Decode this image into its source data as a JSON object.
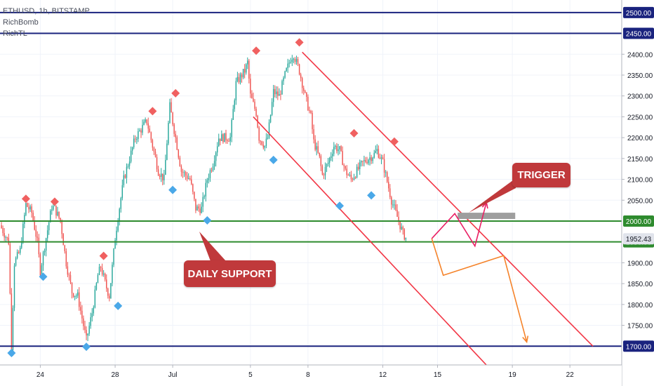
{
  "header": {
    "symbol_line": "ETHUSD, 1h, BITSTAMP",
    "indicator_1": "RichBomb",
    "indicator_2": "RichTL"
  },
  "annotations": {
    "daily_support": "DAILY SUPPORT",
    "trigger": "TRIGGER"
  },
  "colors": {
    "up": "#26a69a",
    "down": "#ef5350",
    "level_blue": "#1a237e",
    "support_green": "#2e8b2e",
    "channel_red": "#f23645",
    "callout_red": "#c0393b",
    "diamond_red": "#f06060",
    "diamond_blue": "#4aa8e8",
    "projection_orange": "#f5832a",
    "projection_pink": "#e91e63",
    "trigger_box": "#9e9e9e"
  },
  "chart_data": {
    "type": "candlestick",
    "symbol": "ETHUSD",
    "timeframe": "1h",
    "exchange": "BITSTAMP",
    "x_tick_labels": [
      "24",
      "28",
      "Jul",
      "5",
      "8",
      "12",
      "15",
      "19",
      "22"
    ],
    "x_tick_index": [
      14,
      40,
      60,
      87,
      107,
      133,
      152,
      178,
      198
    ],
    "x_range": [
      0,
      216
    ],
    "y_ticks": [
      1700,
      1750,
      1800,
      1850,
      1900,
      1950,
      2000,
      2050,
      2100,
      2150,
      2200,
      2250,
      2300,
      2350,
      2400
    ],
    "ylim": [
      1655,
      2530
    ],
    "horizontal_levels": [
      {
        "price": 2500,
        "label": "2500.00",
        "color": "#1a237e",
        "style": "blue"
      },
      {
        "price": 2450,
        "label": "2450.00",
        "color": "#1a237e",
        "style": "blue"
      },
      {
        "price": 2000,
        "label": "2000.00",
        "color": "#2e8b2e",
        "style": "green"
      },
      {
        "price": 1950,
        "label": "1950.00",
        "color": "#2e8b2e",
        "style": "green"
      },
      {
        "price": 1700,
        "label": "1700.00",
        "color": "#1a237e",
        "style": "blue"
      }
    ],
    "current_price": {
      "price": 1952.43,
      "label": "1952.43"
    },
    "price_path": [
      [
        0,
        1990
      ],
      [
        3,
        1950
      ],
      [
        4,
        1700
      ],
      [
        5,
        1900
      ],
      [
        7,
        1930
      ],
      [
        9,
        2040
      ],
      [
        11,
        2020
      ],
      [
        13,
        1950
      ],
      [
        14,
        1880
      ],
      [
        16,
        1960
      ],
      [
        18,
        2035
      ],
      [
        19,
        2030
      ],
      [
        21,
        2000
      ],
      [
        23,
        1900
      ],
      [
        25,
        1830
      ],
      [
        27,
        1820
      ],
      [
        29,
        1750
      ],
      [
        30,
        1715
      ],
      [
        32,
        1780
      ],
      [
        34,
        1870
      ],
      [
        35,
        1890
      ],
      [
        37,
        1840
      ],
      [
        38,
        1820
      ],
      [
        40,
        1960
      ],
      [
        41,
        2010
      ],
      [
        43,
        2100
      ],
      [
        45,
        2150
      ],
      [
        47,
        2200
      ],
      [
        51,
        2240
      ],
      [
        53,
        2180
      ],
      [
        55,
        2120
      ],
      [
        57,
        2100
      ],
      [
        58,
        2190
      ],
      [
        59,
        2275
      ],
      [
        61,
        2200
      ],
      [
        63,
        2120
      ],
      [
        66,
        2100
      ],
      [
        68,
        2030
      ],
      [
        70,
        2030
      ],
      [
        72,
        2100
      ],
      [
        74,
        2140
      ],
      [
        76,
        2200
      ],
      [
        78,
        2200
      ],
      [
        80,
        2200
      ],
      [
        82,
        2330
      ],
      [
        83,
        2340
      ],
      [
        85,
        2360
      ],
      [
        86,
        2380
      ],
      [
        87,
        2300
      ],
      [
        89,
        2260
      ],
      [
        90,
        2200
      ],
      [
        92,
        2180
      ],
      [
        93,
        2200
      ],
      [
        95,
        2310
      ],
      [
        97,
        2300
      ],
      [
        99,
        2350
      ],
      [
        101,
        2390
      ],
      [
        102,
        2400
      ],
      [
        104,
        2360
      ],
      [
        106,
        2300
      ],
      [
        108,
        2250
      ],
      [
        109,
        2190
      ],
      [
        111,
        2150
      ],
      [
        112,
        2110
      ],
      [
        114,
        2140
      ],
      [
        116,
        2180
      ],
      [
        118,
        2170
      ],
      [
        120,
        2120
      ],
      [
        122,
        2100
      ],
      [
        124,
        2120
      ],
      [
        126,
        2140
      ],
      [
        128,
        2150
      ],
      [
        130,
        2160
      ],
      [
        131,
        2170
      ],
      [
        133,
        2140
      ],
      [
        135,
        2080
      ],
      [
        136,
        2050
      ],
      [
        138,
        2010
      ],
      [
        139,
        1990
      ],
      [
        140,
        1970
      ],
      [
        141,
        1960
      ]
    ],
    "diamond_markers": [
      {
        "x": 9,
        "price": 2040,
        "type": "top"
      },
      {
        "x": 19,
        "price": 2033,
        "type": "top"
      },
      {
        "x": 36,
        "price": 1903,
        "type": "top"
      },
      {
        "x": 53,
        "price": 2250,
        "type": "top"
      },
      {
        "x": 61,
        "price": 2293,
        "type": "top"
      },
      {
        "x": 89,
        "price": 2395,
        "type": "top"
      },
      {
        "x": 104,
        "price": 2415,
        "type": "top"
      },
      {
        "x": 123,
        "price": 2197,
        "type": "top"
      },
      {
        "x": 137,
        "price": 2177,
        "type": "top"
      },
      {
        "x": 4,
        "price": 1697,
        "type": "bottom"
      },
      {
        "x": 15,
        "price": 1880,
        "type": "bottom"
      },
      {
        "x": 30,
        "price": 1712,
        "type": "bottom"
      },
      {
        "x": 41,
        "price": 1810,
        "type": "bottom"
      },
      {
        "x": 60,
        "price": 2088,
        "type": "bottom"
      },
      {
        "x": 72,
        "price": 2015,
        "type": "bottom"
      },
      {
        "x": 95,
        "price": 2160,
        "type": "bottom"
      },
      {
        "x": 118,
        "price": 2050,
        "type": "bottom"
      },
      {
        "x": 129,
        "price": 2075,
        "type": "bottom"
      }
    ],
    "channel_lines": [
      {
        "from": [
          105,
          2405
        ],
        "to": [
          206,
          1700
        ]
      },
      {
        "from": [
          88,
          2250
        ],
        "to": [
          171,
          1640
        ]
      }
    ],
    "projections": {
      "orange": [
        [
          150,
          1958
        ],
        [
          154,
          1870
        ],
        [
          175,
          1917
        ],
        [
          183,
          1710
        ]
      ],
      "pink": [
        [
          150,
          1958
        ],
        [
          158,
          2018
        ],
        [
          165,
          1940
        ],
        [
          169,
          2045
        ]
      ]
    },
    "trigger_zone": {
      "x0": 159,
      "x1": 179,
      "price_low": 2005,
      "price_high": 2020
    }
  }
}
